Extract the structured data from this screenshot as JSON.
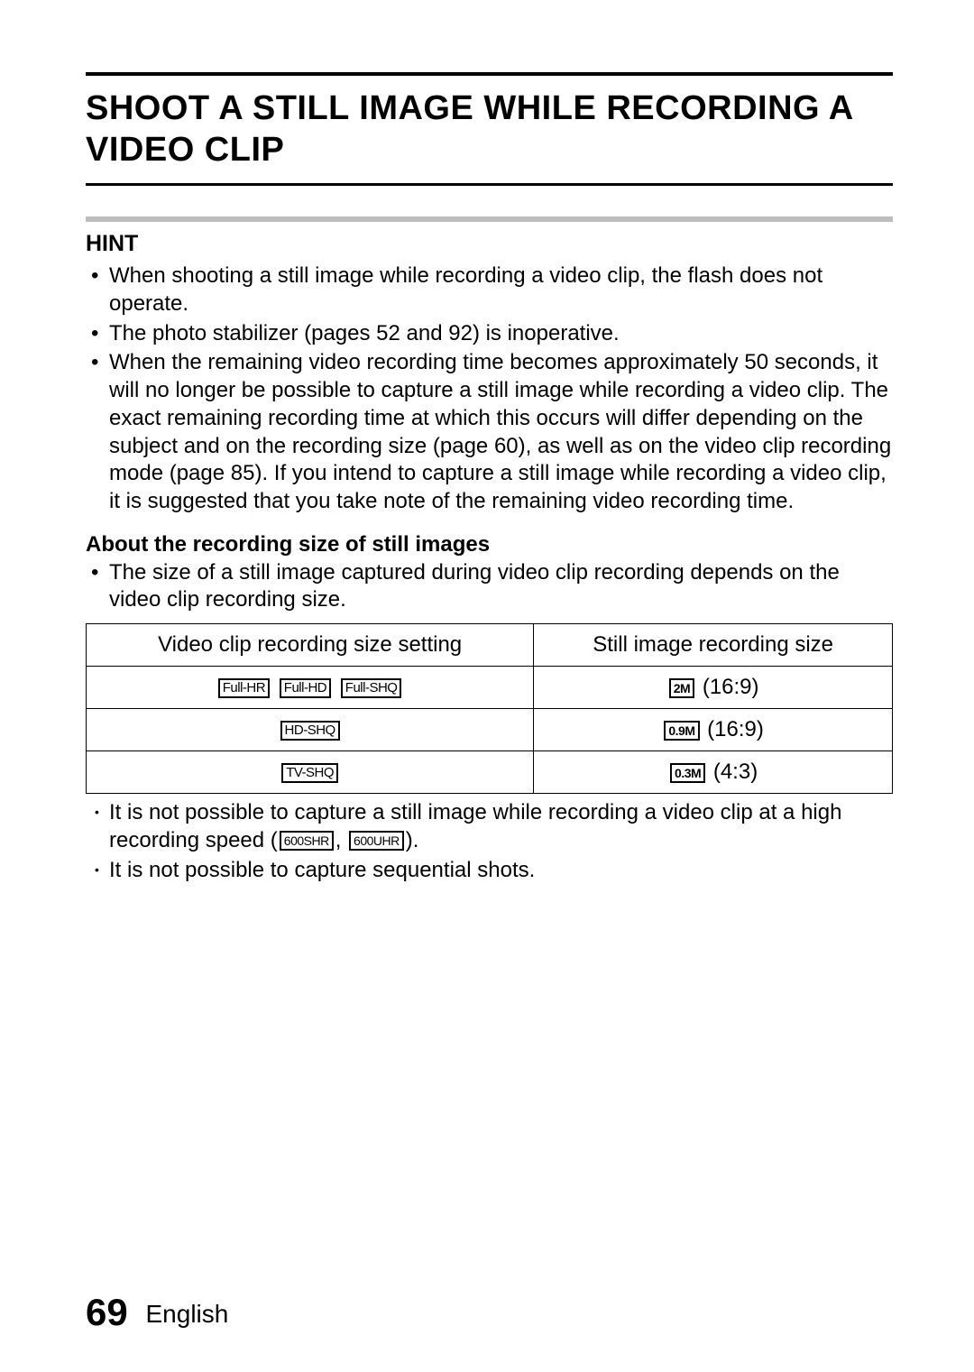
{
  "title": "SHOOT A STILL IMAGE WHILE RECORDING A VIDEO CLIP",
  "hint": {
    "heading": "HINT",
    "items": [
      "When shooting a still image while recording a video clip, the flash does not operate.",
      "The photo stabilizer (pages 52 and 92) is inoperative.",
      "When the remaining video recording time becomes approximately 50 seconds, it will no longer be possible to capture a still image while recording a video clip. The exact remaining recording time at which this occurs will differ depending on the subject and on the recording size (page 60), as well as on the video clip recording mode (page 85). If you intend to capture a still image while recording a video clip, it is suggested that you take note of the remaining video recording time."
    ]
  },
  "recording_size": {
    "heading": "About the recording size of still images",
    "lead": "The size of a still image captured during video clip recording depends on the video clip recording size."
  },
  "table": {
    "columns": [
      "Video clip recording size setting",
      "Still image recording size"
    ],
    "rows": [
      {
        "video_icons": [
          "Full-HR",
          "Full-HD",
          "Full-SHQ"
        ],
        "still_icon": "2M",
        "still_overline": true,
        "aspect": "(16:9)"
      },
      {
        "video_icons": [
          "HD-SHQ"
        ],
        "still_icon": "0.9M",
        "still_overline": true,
        "aspect": "(16:9)"
      },
      {
        "video_icons": [
          "TV-SHQ"
        ],
        "still_icon": "0.3M",
        "still_overline": false,
        "aspect": "(4:3)"
      }
    ]
  },
  "notes": {
    "n1_pre": "It is not possible to capture a still image while recording a video clip at a high recording speed (",
    "n1_icons": [
      "600SHR",
      "600UHR"
    ],
    "n1_post": ").",
    "n2": "It is not possible to capture sequential shots."
  },
  "footer": {
    "page": "69",
    "lang": "English"
  },
  "colors": {
    "text": "#000000",
    "hint_sep": "#bdbdbd",
    "background": "#ffffff"
  }
}
